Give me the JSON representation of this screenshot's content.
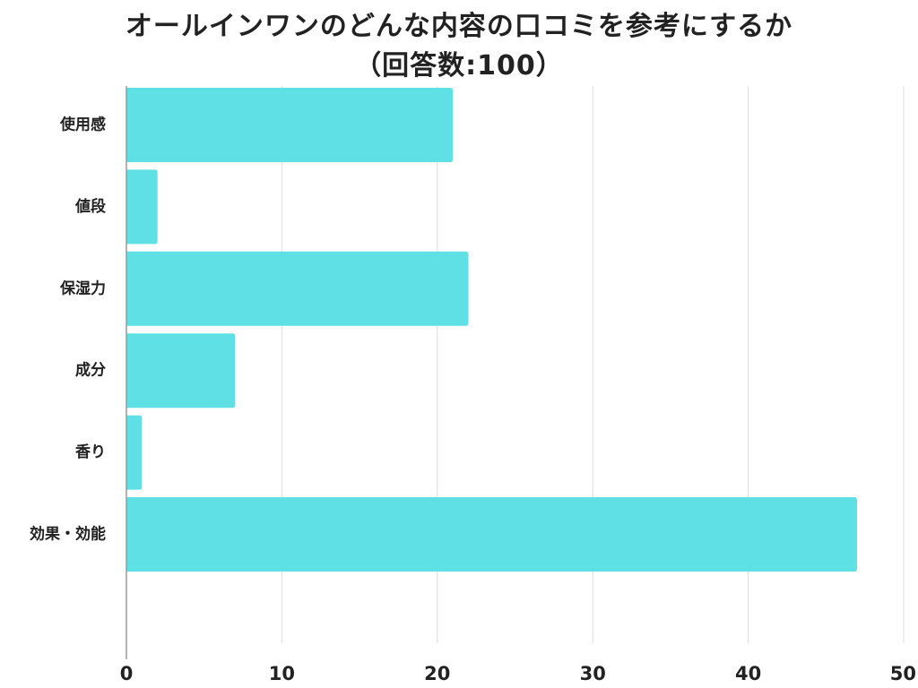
{
  "title_line1": "オールインワンのどんな内容の口コミを参考にするか",
  "title_line2": "（回答数:100）",
  "chart_data": {
    "type": "bar",
    "orientation": "horizontal",
    "categories": [
      "使用感",
      "値段",
      "保湿力",
      "成分",
      "香り",
      "効果・効能"
    ],
    "values": [
      21,
      2,
      22,
      7,
      1,
      47
    ],
    "xlim": [
      0,
      50
    ],
    "xticks": [
      0,
      10,
      20,
      30,
      40,
      50
    ],
    "grid": true,
    "bar_color": "#5ee0e5",
    "grid_color": "#dcdcdc"
  }
}
